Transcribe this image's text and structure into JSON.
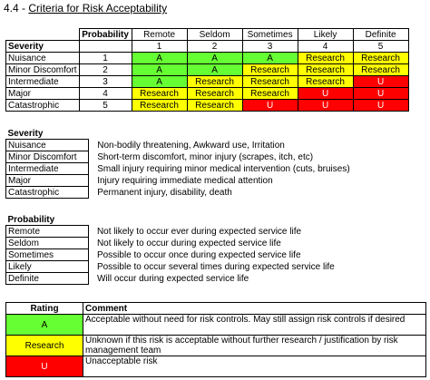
{
  "title": {
    "number": "4.4 - ",
    "text": "Criteria for Risk Acceptability"
  },
  "matrix": {
    "probability_label": "Probability",
    "severity_label": "Severity",
    "prob_names": [
      "Remote",
      "Seldom",
      "Sometimes",
      "Likely",
      "Definite"
    ],
    "prob_nums": [
      "1",
      "2",
      "3",
      "4",
      "5"
    ],
    "rows": [
      {
        "name": "Nuisance",
        "num": "1",
        "cells": [
          "A",
          "A",
          "A",
          "Research",
          "Research"
        ]
      },
      {
        "name": "Minor Discomfort",
        "num": "2",
        "cells": [
          "A",
          "A",
          "Research",
          "Research",
          "Research"
        ]
      },
      {
        "name": "Intermediate",
        "num": "3",
        "cells": [
          "A",
          "Research",
          "Research",
          "Research",
          "U"
        ]
      },
      {
        "name": "Major",
        "num": "4",
        "cells": [
          "Research",
          "Research",
          "Research",
          "U",
          "U"
        ]
      },
      {
        "name": "Catastrophic",
        "num": "5",
        "cells": [
          "Research",
          "Research",
          "U",
          "U",
          "U"
        ]
      }
    ],
    "colors": {
      "A": "#66ff33",
      "Research": "#ffff00",
      "U": "#ff0000"
    }
  },
  "severity_defs": {
    "heading": "Severity",
    "items": [
      {
        "name": "Nuisance",
        "desc": "Non-bodily threatening, Awkward use, Irritation"
      },
      {
        "name": "Minor Discomfort",
        "desc": "Short-term discomfort, minor injury (scrapes, itch, etc)"
      },
      {
        "name": "Intermediate",
        "desc": "Small injury requiring minor medical intervention (cuts, bruises)"
      },
      {
        "name": "Major",
        "desc": "Injury requiring immediate medical attention"
      },
      {
        "name": "Catastrophic",
        "desc": "Permanent injury, disability, death"
      }
    ]
  },
  "probability_defs": {
    "heading": "Probability",
    "items": [
      {
        "name": "Remote",
        "desc": "Not likely to occur ever during expected service life"
      },
      {
        "name": "Seldom",
        "desc": "Not likely to occur during expected service life"
      },
      {
        "name": "Sometimes",
        "desc": "Possible to occur once during expected service life"
      },
      {
        "name": "Likely",
        "desc": "Possible to occur several times during expected service life"
      },
      {
        "name": "Definite",
        "desc": "Will occur during expected service life"
      }
    ]
  },
  "rating": {
    "rating_header": "Rating",
    "comment_header": "Comment",
    "rows": [
      {
        "label": "A",
        "comment": "Acceptable without need for risk controls.  May still assign risk controls if desired"
      },
      {
        "label": "Research",
        "comment": "Unknown if this risk is acceptable without further research / justification by risk management team"
      },
      {
        "label": "U",
        "comment": "Unacceptable risk"
      }
    ]
  }
}
